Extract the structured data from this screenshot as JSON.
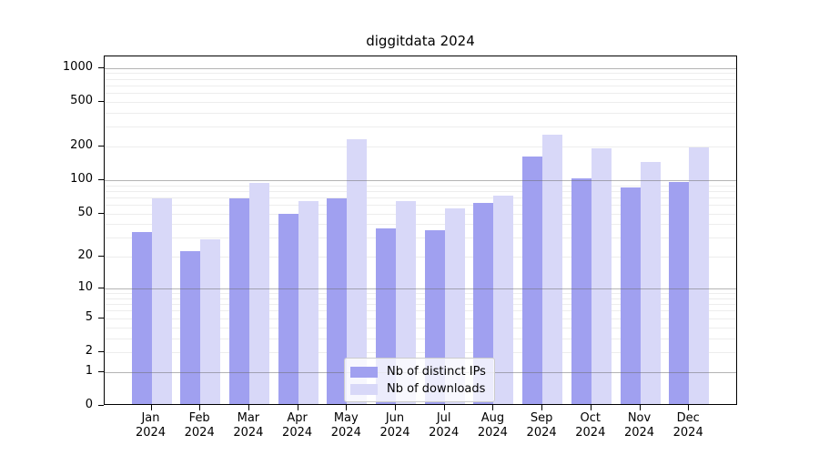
{
  "title": "diggitdata 2024",
  "chart_data": {
    "type": "bar",
    "title": "diggitdata 2024",
    "categories": [
      "Jan",
      "Feb",
      "Mar",
      "Apr",
      "May",
      "Jun",
      "Jul",
      "Aug",
      "Sep",
      "Oct",
      "Nov",
      "Dec"
    ],
    "x_sublabel": "2024",
    "series": [
      {
        "name": "Nb of distinct IPs",
        "color": "#a0a0f0",
        "values": [
          33,
          22,
          66,
          48,
          66,
          35,
          34,
          60,
          156,
          100,
          83,
          92
        ]
      },
      {
        "name": "Nb of downloads",
        "color": "#d8d8f8",
        "values": [
          66,
          28,
          91,
          63,
          225,
          63,
          54,
          70,
          244,
          186,
          139,
          189
        ]
      }
    ],
    "yscale": "log10(1+x)",
    "yticks": [
      0,
      1,
      2,
      5,
      10,
      20,
      50,
      100,
      200,
      500,
      1000
    ],
    "ylim": [
      0,
      1270
    ],
    "grid": "horizontal, decade lines darker, drawn over bars",
    "legend_position": "lower center"
  },
  "colors": {
    "ips_bar": "#a0a0f0",
    "downloads_bar": "#d8d8f8",
    "major_grid": "rgba(105,105,105,0.5)",
    "minor_grid": "rgba(0,0,0,0.07)",
    "axis": "#000000",
    "background": "#ffffff"
  }
}
